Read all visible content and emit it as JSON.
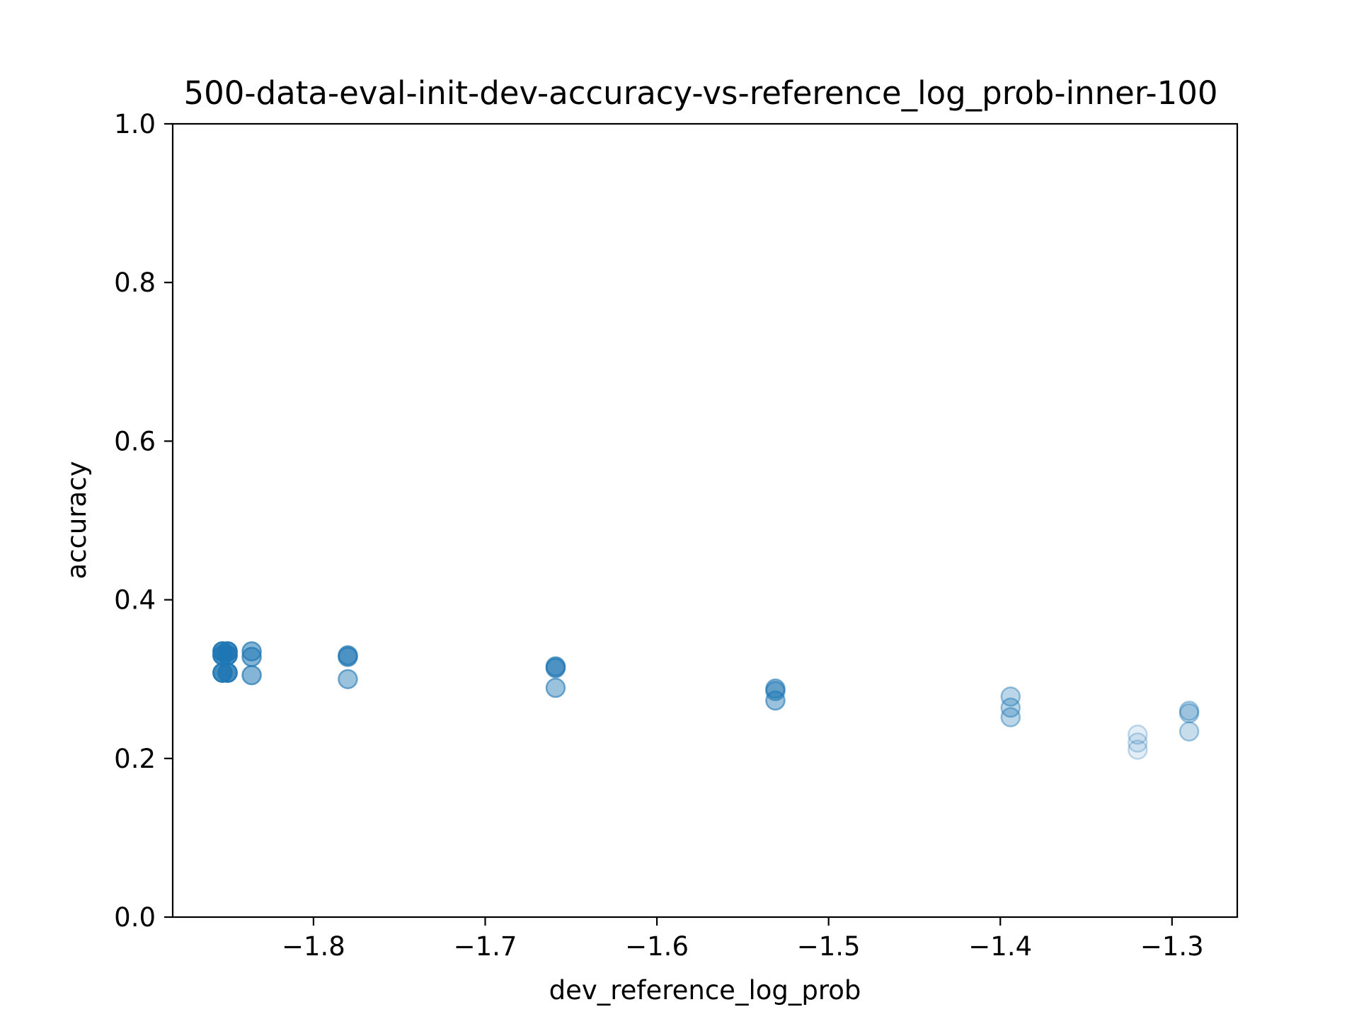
{
  "chart_data": {
    "type": "scatter",
    "title": "500-data-eval-init-dev-accuracy-vs-reference_log_prob-inner-100",
    "xlabel": "dev_reference_log_prob",
    "ylabel": "accuracy",
    "xlim": [
      -1.882,
      -1.262
    ],
    "ylim": [
      0.0,
      1.0
    ],
    "xticks": [
      -1.8,
      -1.7,
      -1.6,
      -1.5,
      -1.4,
      -1.3
    ],
    "xtick_labels": [
      "−1.8",
      "−1.7",
      "−1.6",
      "−1.5",
      "−1.4",
      "−1.3"
    ],
    "yticks": [
      0.0,
      0.2,
      0.4,
      0.6,
      0.8,
      1.0
    ],
    "ytick_labels": [
      "0.0",
      "0.2",
      "0.4",
      "0.6",
      "0.8",
      "1.0"
    ],
    "grid": false,
    "marker_color": "#1f77b4",
    "points": [
      {
        "x": -1.853,
        "y": 0.335,
        "alpha": 0.6
      },
      {
        "x": -1.853,
        "y": 0.33,
        "alpha": 0.6
      },
      {
        "x": -1.853,
        "y": 0.308,
        "alpha": 0.6
      },
      {
        "x": -1.853,
        "y": 0.335,
        "alpha": 0.6
      },
      {
        "x": -1.853,
        "y": 0.33,
        "alpha": 0.6
      },
      {
        "x": -1.853,
        "y": 0.308,
        "alpha": 0.6
      },
      {
        "x": -1.85,
        "y": 0.335,
        "alpha": 0.6
      },
      {
        "x": -1.85,
        "y": 0.33,
        "alpha": 0.6
      },
      {
        "x": -1.85,
        "y": 0.308,
        "alpha": 0.6
      },
      {
        "x": -1.85,
        "y": 0.335,
        "alpha": 0.6
      },
      {
        "x": -1.85,
        "y": 0.33,
        "alpha": 0.6
      },
      {
        "x": -1.85,
        "y": 0.308,
        "alpha": 0.6
      },
      {
        "x": -1.836,
        "y": 0.335,
        "alpha": 0.55
      },
      {
        "x": -1.836,
        "y": 0.328,
        "alpha": 0.55
      },
      {
        "x": -1.836,
        "y": 0.305,
        "alpha": 0.55
      },
      {
        "x": -1.78,
        "y": 0.33,
        "alpha": 0.55
      },
      {
        "x": -1.78,
        "y": 0.328,
        "alpha": 0.55
      },
      {
        "x": -1.78,
        "y": 0.3,
        "alpha": 0.45
      },
      {
        "x": -1.659,
        "y": 0.316,
        "alpha": 0.55
      },
      {
        "x": -1.659,
        "y": 0.314,
        "alpha": 0.55
      },
      {
        "x": -1.659,
        "y": 0.289,
        "alpha": 0.45
      },
      {
        "x": -1.531,
        "y": 0.288,
        "alpha": 0.45
      },
      {
        "x": -1.531,
        "y": 0.285,
        "alpha": 0.45
      },
      {
        "x": -1.531,
        "y": 0.273,
        "alpha": 0.45
      },
      {
        "x": -1.394,
        "y": 0.278,
        "alpha": 0.3
      },
      {
        "x": -1.394,
        "y": 0.264,
        "alpha": 0.3
      },
      {
        "x": -1.394,
        "y": 0.252,
        "alpha": 0.3
      },
      {
        "x": -1.32,
        "y": 0.23,
        "alpha": 0.12
      },
      {
        "x": -1.32,
        "y": 0.22,
        "alpha": 0.12
      },
      {
        "x": -1.32,
        "y": 0.211,
        "alpha": 0.12
      },
      {
        "x": -1.29,
        "y": 0.26,
        "alpha": 0.25
      },
      {
        "x": -1.29,
        "y": 0.257,
        "alpha": 0.25
      },
      {
        "x": -1.29,
        "y": 0.234,
        "alpha": 0.25
      }
    ]
  }
}
